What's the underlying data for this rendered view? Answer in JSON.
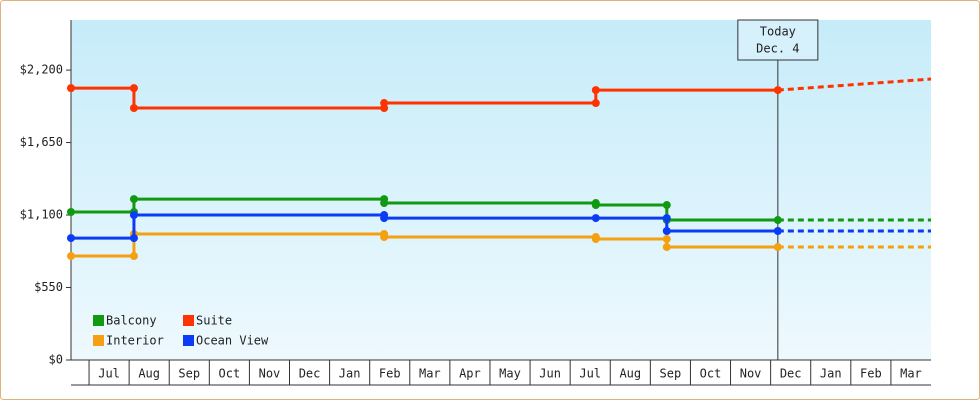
{
  "chart_data": {
    "type": "step-line",
    "categories": [
      null,
      "Jul",
      "Aug",
      "Sep",
      "Oct",
      "Nov",
      "Dec",
      "Jan",
      "Feb",
      "Mar",
      "Apr",
      "May",
      "Jun",
      "Jul",
      "Aug",
      "Sep",
      "Oct",
      "Nov",
      "Dec",
      "Jan",
      "Feb",
      "Mar"
    ],
    "xlim": [
      0.55,
      22
    ],
    "ylim": [
      0,
      2580
    ],
    "yticks": [
      {
        "value": 0,
        "label": "$0"
      },
      {
        "value": 550,
        "label": "$550"
      },
      {
        "value": 1100,
        "label": "$1,100"
      },
      {
        "value": 1650,
        "label": "$1,650"
      },
      {
        "value": 2200,
        "label": "$2,200"
      }
    ],
    "today": {
      "x": 18.18,
      "label": [
        "Today",
        "Dec. 4"
      ]
    },
    "legend": "lower left",
    "series": [
      {
        "name": "Balcony",
        "color": "#119911",
        "x": [
          0.55,
          2.12,
          2.12,
          8.36,
          8.36,
          13.64,
          13.64,
          15.41,
          15.41,
          18.18,
          22
        ],
        "values": [
          1123,
          1123,
          1221,
          1221,
          1191,
          1191,
          1176,
          1176,
          1062,
          1062,
          1062
        ]
      },
      {
        "name": "Suite",
        "color": "#ff3300",
        "x": [
          0.55,
          2.12,
          2.12,
          8.36,
          8.36,
          13.64,
          13.64,
          18.18,
          22
        ],
        "values": [
          2063,
          2063,
          1912,
          1912,
          1950,
          1950,
          2048,
          2048,
          2132
        ]
      },
      {
        "name": "Interior",
        "color": "#f5a010",
        "x": [
          0.55,
          2.12,
          2.12,
          8.36,
          8.36,
          13.64,
          13.64,
          15.41,
          15.41,
          18.18,
          22
        ],
        "values": [
          789,
          789,
          956,
          956,
          933,
          933,
          918,
          918,
          857,
          857,
          857
        ]
      },
      {
        "name": "Ocean View",
        "color": "#0a3cf5",
        "x": [
          0.55,
          2.12,
          2.12,
          8.36,
          8.36,
          13.64,
          15.41,
          15.41,
          18.18,
          22
        ],
        "values": [
          925,
          925,
          1100,
          1100,
          1077,
          1077,
          1077,
          979,
          979,
          979
        ]
      }
    ]
  }
}
